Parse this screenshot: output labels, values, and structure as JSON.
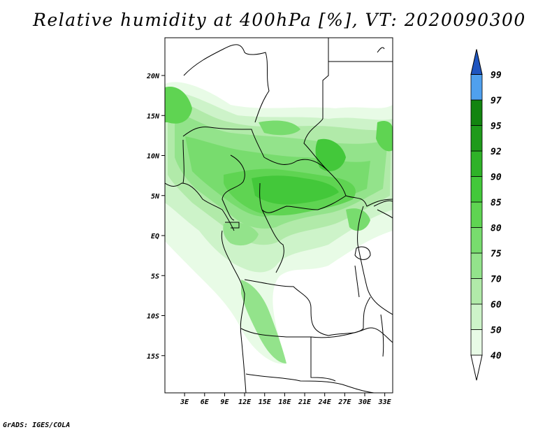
{
  "title": "Relative humidity at 400hPa [%], VT: 2020090300",
  "credit": "GrADS: IGES/COLA",
  "map": {
    "lat_ticks": [
      "20N",
      "15N",
      "10N",
      "5N",
      "EQ",
      "5S",
      "10S",
      "15S"
    ],
    "lat_values": [
      20,
      15,
      10,
      5,
      0,
      -5,
      -10,
      -15
    ],
    "lon_ticks": [
      "3E",
      "6E",
      "9E",
      "12E",
      "15E",
      "18E",
      "21E",
      "24E",
      "27E",
      "30E",
      "33E"
    ],
    "lon_values": [
      3,
      6,
      9,
      12,
      15,
      18,
      21,
      24,
      27,
      30,
      33
    ]
  },
  "colorbar": {
    "levels": [
      "40",
      "50",
      "60",
      "70",
      "75",
      "80",
      "85",
      "90",
      "92",
      "95",
      "97",
      "99"
    ],
    "colors": [
      "#e8fbe6",
      "#cdf3c9",
      "#b1eaa9",
      "#93e38b",
      "#78dc6e",
      "#5fd452",
      "#43c83a",
      "#2fb228",
      "#1f9a1b",
      "#138410",
      "#4fa0ee",
      "#2f78dc",
      "#1f55c0"
    ]
  }
}
